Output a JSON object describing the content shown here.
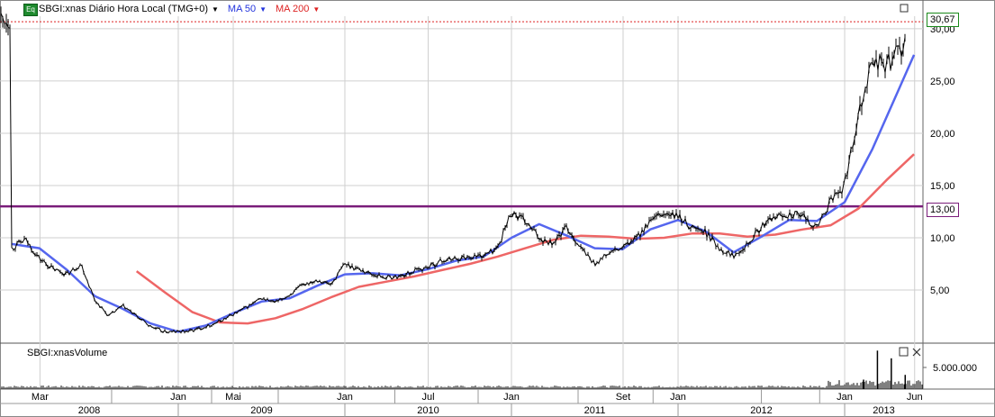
{
  "header": {
    "icon_label": "Eq",
    "symbol": "SBGI:xnas Diário Hora Local (TMG+0)",
    "ma50": "MA 50",
    "ma200": "MA 200"
  },
  "tags": {
    "last_price": "30,67",
    "level": "13,00"
  },
  "volume_panel": {
    "title": "SBGI:xnasVolume",
    "tick": "5.000.000"
  },
  "colors": {
    "price": "#000000",
    "ma50": "#5566ee",
    "ma200": "#ee6666",
    "level": "#7a1d7a",
    "last_line": "#dd2222",
    "volume": "#000000"
  },
  "chart_data": {
    "type": "line",
    "y_ticks": [
      "5,00",
      "10,00",
      "15,00",
      "20,00",
      "25,00",
      "30,00"
    ],
    "x_month_labels": [
      "Mar",
      "Jan",
      "Mai",
      "Jan",
      "Jul",
      "Jan",
      "Set",
      "Jan",
      "Jan",
      "Jun"
    ],
    "x_year_labels": [
      "2008",
      "2009",
      "2010",
      "2011",
      "2012",
      "2013"
    ],
    "horizontal_level": 13.0,
    "last_price": 30.67,
    "series": [
      {
        "name": "SBGI:xnas",
        "points": [
          [
            "2008-01",
            9.0
          ],
          [
            "2008-02",
            9.8
          ],
          [
            "2008-03",
            8.0
          ],
          [
            "2008-04",
            7.0
          ],
          [
            "2008-05",
            6.5
          ],
          [
            "2008-06",
            7.5
          ],
          [
            "2008-07",
            4.0
          ],
          [
            "2008-08",
            2.5
          ],
          [
            "2008-09",
            3.5
          ],
          [
            "2008-10",
            2.5
          ],
          [
            "2008-11",
            1.5
          ],
          [
            "2008-12",
            1.0
          ],
          [
            "2009-01",
            1.0
          ],
          [
            "2009-02",
            1.1
          ],
          [
            "2009-03",
            1.5
          ],
          [
            "2009-04",
            2.0
          ],
          [
            "2009-05",
            2.7
          ],
          [
            "2009-06",
            3.4
          ],
          [
            "2009-07",
            4.2
          ],
          [
            "2009-08",
            3.8
          ],
          [
            "2009-09",
            4.5
          ],
          [
            "2009-10",
            5.5
          ],
          [
            "2009-11",
            6.0
          ],
          [
            "2009-12",
            5.5
          ],
          [
            "2010-01",
            7.5
          ],
          [
            "2010-02",
            7.0
          ],
          [
            "2010-03",
            6.5
          ],
          [
            "2010-04",
            6.2
          ],
          [
            "2010-05",
            6.3
          ],
          [
            "2010-06",
            6.8
          ],
          [
            "2010-07",
            7.2
          ],
          [
            "2010-08",
            7.8
          ],
          [
            "2010-09",
            8.0
          ],
          [
            "2010-10",
            8.2
          ],
          [
            "2010-11",
            8.3
          ],
          [
            "2010-12",
            9.0
          ],
          [
            "2011-01",
            12.5
          ],
          [
            "2011-02",
            11.5
          ],
          [
            "2011-03",
            10.0
          ],
          [
            "2011-04",
            9.5
          ],
          [
            "2011-05",
            11.0
          ],
          [
            "2011-06",
            9.0
          ],
          [
            "2011-07",
            7.5
          ],
          [
            "2011-08",
            8.5
          ],
          [
            "2011-09",
            9.0
          ],
          [
            "2011-10",
            10.0
          ],
          [
            "2011-11",
            11.5
          ],
          [
            "2011-12",
            12.3
          ],
          [
            "2012-01",
            12.0
          ],
          [
            "2012-02",
            11.0
          ],
          [
            "2012-03",
            10.5
          ],
          [
            "2012-04",
            9.0
          ],
          [
            "2012-05",
            8.3
          ],
          [
            "2012-06",
            9.5
          ],
          [
            "2012-07",
            11.0
          ],
          [
            "2012-08",
            12.0
          ],
          [
            "2012-09",
            12.3
          ],
          [
            "2012-10",
            12.0
          ],
          [
            "2012-11",
            11.0
          ],
          [
            "2012-12",
            13.5
          ],
          [
            "2013-01",
            15.0
          ],
          [
            "2013-02",
            22.0
          ],
          [
            "2013-03",
            27.0
          ],
          [
            "2013-04",
            26.5
          ],
          [
            "2013-05",
            28.0
          ],
          [
            "2013-06",
            31.0
          ]
        ]
      },
      {
        "name": "MA 50",
        "points": [
          [
            "2008-01",
            9.4
          ],
          [
            "2008-03",
            9.0
          ],
          [
            "2008-05",
            6.9
          ],
          [
            "2008-07",
            4.4
          ],
          [
            "2008-09",
            3.2
          ],
          [
            "2008-11",
            1.8
          ],
          [
            "2009-01",
            1.0
          ],
          [
            "2009-03",
            1.6
          ],
          [
            "2009-05",
            2.8
          ],
          [
            "2009-07",
            3.9
          ],
          [
            "2009-09",
            4.2
          ],
          [
            "2009-11",
            5.4
          ],
          [
            "2010-01",
            6.5
          ],
          [
            "2010-03",
            6.6
          ],
          [
            "2010-05",
            6.4
          ],
          [
            "2010-07",
            7.0
          ],
          [
            "2010-09",
            7.8
          ],
          [
            "2010-11",
            8.2
          ],
          [
            "2011-01",
            10.0
          ],
          [
            "2011-03",
            11.3
          ],
          [
            "2011-05",
            10.2
          ],
          [
            "2011-07",
            9.0
          ],
          [
            "2011-09",
            8.9
          ],
          [
            "2011-11",
            10.8
          ],
          [
            "2012-01",
            11.7
          ],
          [
            "2012-03",
            10.6
          ],
          [
            "2012-05",
            8.6
          ],
          [
            "2012-07",
            10.1
          ],
          [
            "2012-09",
            11.7
          ],
          [
            "2012-11",
            11.6
          ],
          [
            "2013-01",
            13.4
          ],
          [
            "2013-03",
            18.5
          ],
          [
            "2013-05",
            24.5
          ],
          [
            "2013-06",
            27.5
          ]
        ]
      },
      {
        "name": "MA 200",
        "points": [
          [
            "2008-10",
            6.8
          ],
          [
            "2008-12",
            4.8
          ],
          [
            "2009-02",
            2.9
          ],
          [
            "2009-04",
            1.9
          ],
          [
            "2009-06",
            1.8
          ],
          [
            "2009-08",
            2.3
          ],
          [
            "2009-10",
            3.2
          ],
          [
            "2009-12",
            4.3
          ],
          [
            "2010-02",
            5.3
          ],
          [
            "2010-04",
            5.8
          ],
          [
            "2010-06",
            6.3
          ],
          [
            "2010-08",
            6.9
          ],
          [
            "2010-10",
            7.5
          ],
          [
            "2010-12",
            8.2
          ],
          [
            "2011-02",
            9.0
          ],
          [
            "2011-04",
            9.8
          ],
          [
            "2011-06",
            10.2
          ],
          [
            "2011-08",
            10.1
          ],
          [
            "2011-10",
            9.9
          ],
          [
            "2011-12",
            10.0
          ],
          [
            "2012-02",
            10.4
          ],
          [
            "2012-04",
            10.4
          ],
          [
            "2012-06",
            10.1
          ],
          [
            "2012-08",
            10.3
          ],
          [
            "2012-10",
            10.8
          ],
          [
            "2012-12",
            11.2
          ],
          [
            "2013-02",
            12.8
          ],
          [
            "2013-04",
            15.5
          ],
          [
            "2013-06",
            18.0
          ]
        ]
      }
    ],
    "volume_spikes": [
      [
        "2013-03",
        6500000
      ],
      [
        "2013-04",
        5200000
      ],
      [
        "2013-05",
        2400000
      ],
      [
        "2013-02",
        1600000
      ]
    ]
  }
}
